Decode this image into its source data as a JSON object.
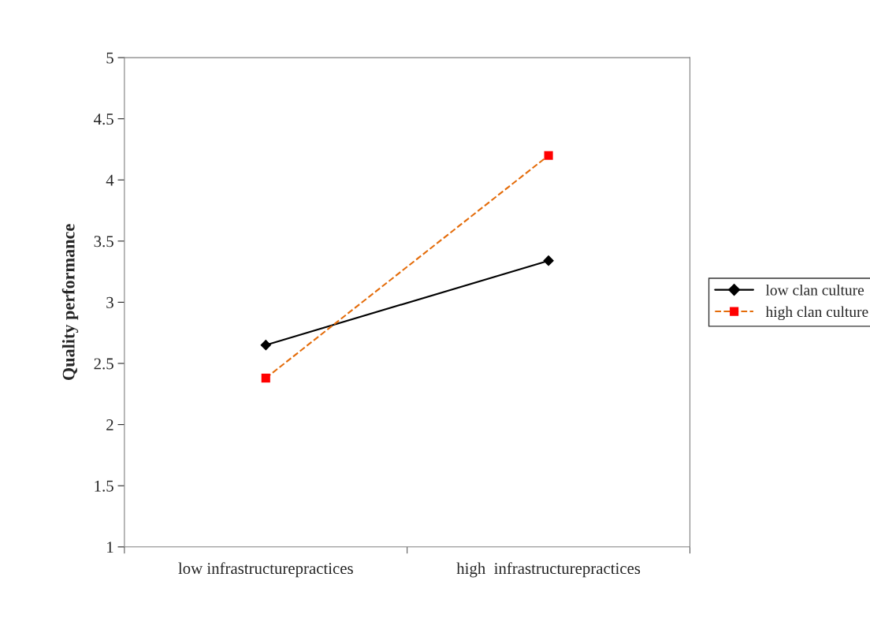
{
  "chart_data": {
    "type": "line",
    "ylabel": "Quality performance",
    "categories": [
      "low infrastructurepractices",
      "high  infrastructurepractices"
    ],
    "series": [
      {
        "name": "low clan culture",
        "color": "#000000",
        "values": [
          2.65,
          3.34
        ],
        "marker": "diamond",
        "line_style": "solid"
      },
      {
        "name": "high clan culture",
        "color": "#e46c0a",
        "colors": [
          "#ff0000",
          "#ff0000"
        ],
        "values": [
          2.38,
          4.2
        ],
        "marker": "square",
        "line_style": "dashed"
      }
    ],
    "ylim": [
      1,
      5
    ],
    "yticks": [
      1,
      1.5,
      2,
      2.5,
      3,
      3.5,
      4,
      4.5,
      5
    ],
    "grid": false,
    "legend": "right"
  }
}
